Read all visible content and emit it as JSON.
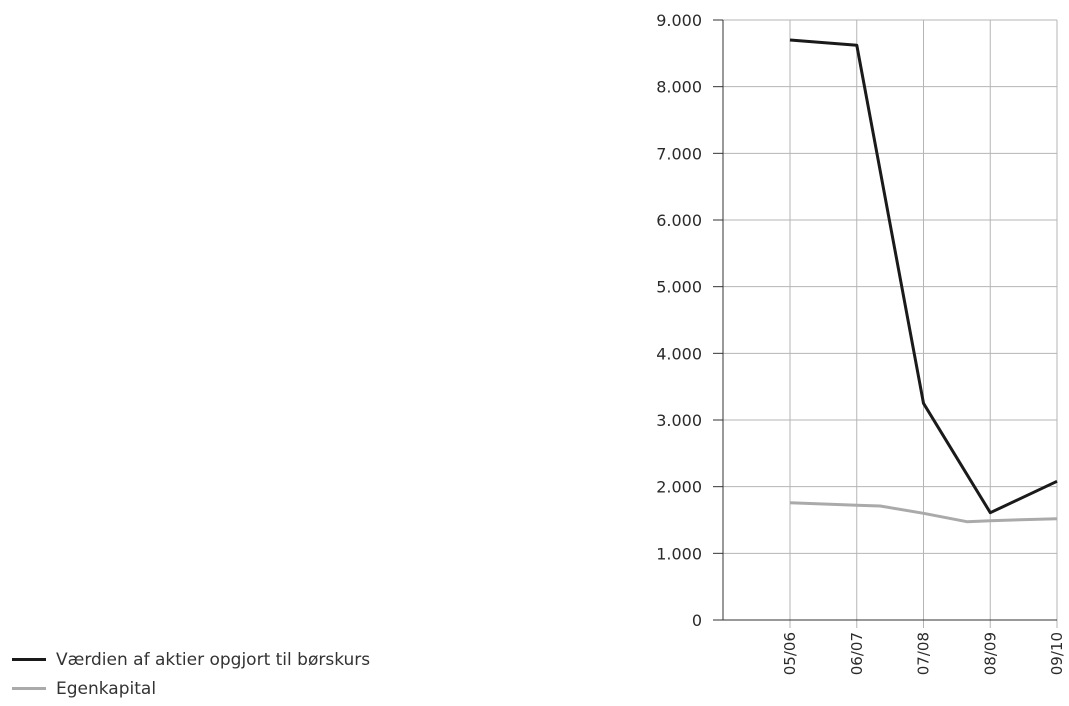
{
  "chart_data": {
    "type": "line",
    "categories": [
      "05/06",
      "06/07",
      "07/08",
      "08/09",
      "09/10"
    ],
    "series": [
      {
        "name": "Værdien af aktier opgjort til børskurs",
        "color": "#1a1a1a",
        "points": [
          [
            0,
            8700
          ],
          [
            1,
            8620
          ],
          [
            2,
            3250
          ],
          [
            3,
            1610
          ],
          [
            4,
            2080
          ]
        ]
      },
      {
        "name": "Egenkapital",
        "color": "#aaaaaa",
        "points": [
          [
            0,
            1760
          ],
          [
            1,
            1720
          ],
          [
            1.35,
            1710
          ],
          [
            2,
            1600
          ],
          [
            2.65,
            1475
          ],
          [
            3,
            1490
          ],
          [
            4,
            1520
          ]
        ]
      }
    ],
    "yticks": [
      "0",
      "1.000",
      "2.000",
      "3.000",
      "4.000",
      "5.000",
      "6.000",
      "7.000",
      "8.000",
      "9.000"
    ],
    "ylim": [
      0,
      9000
    ],
    "grid": true,
    "legend_position": "bottom-left"
  }
}
